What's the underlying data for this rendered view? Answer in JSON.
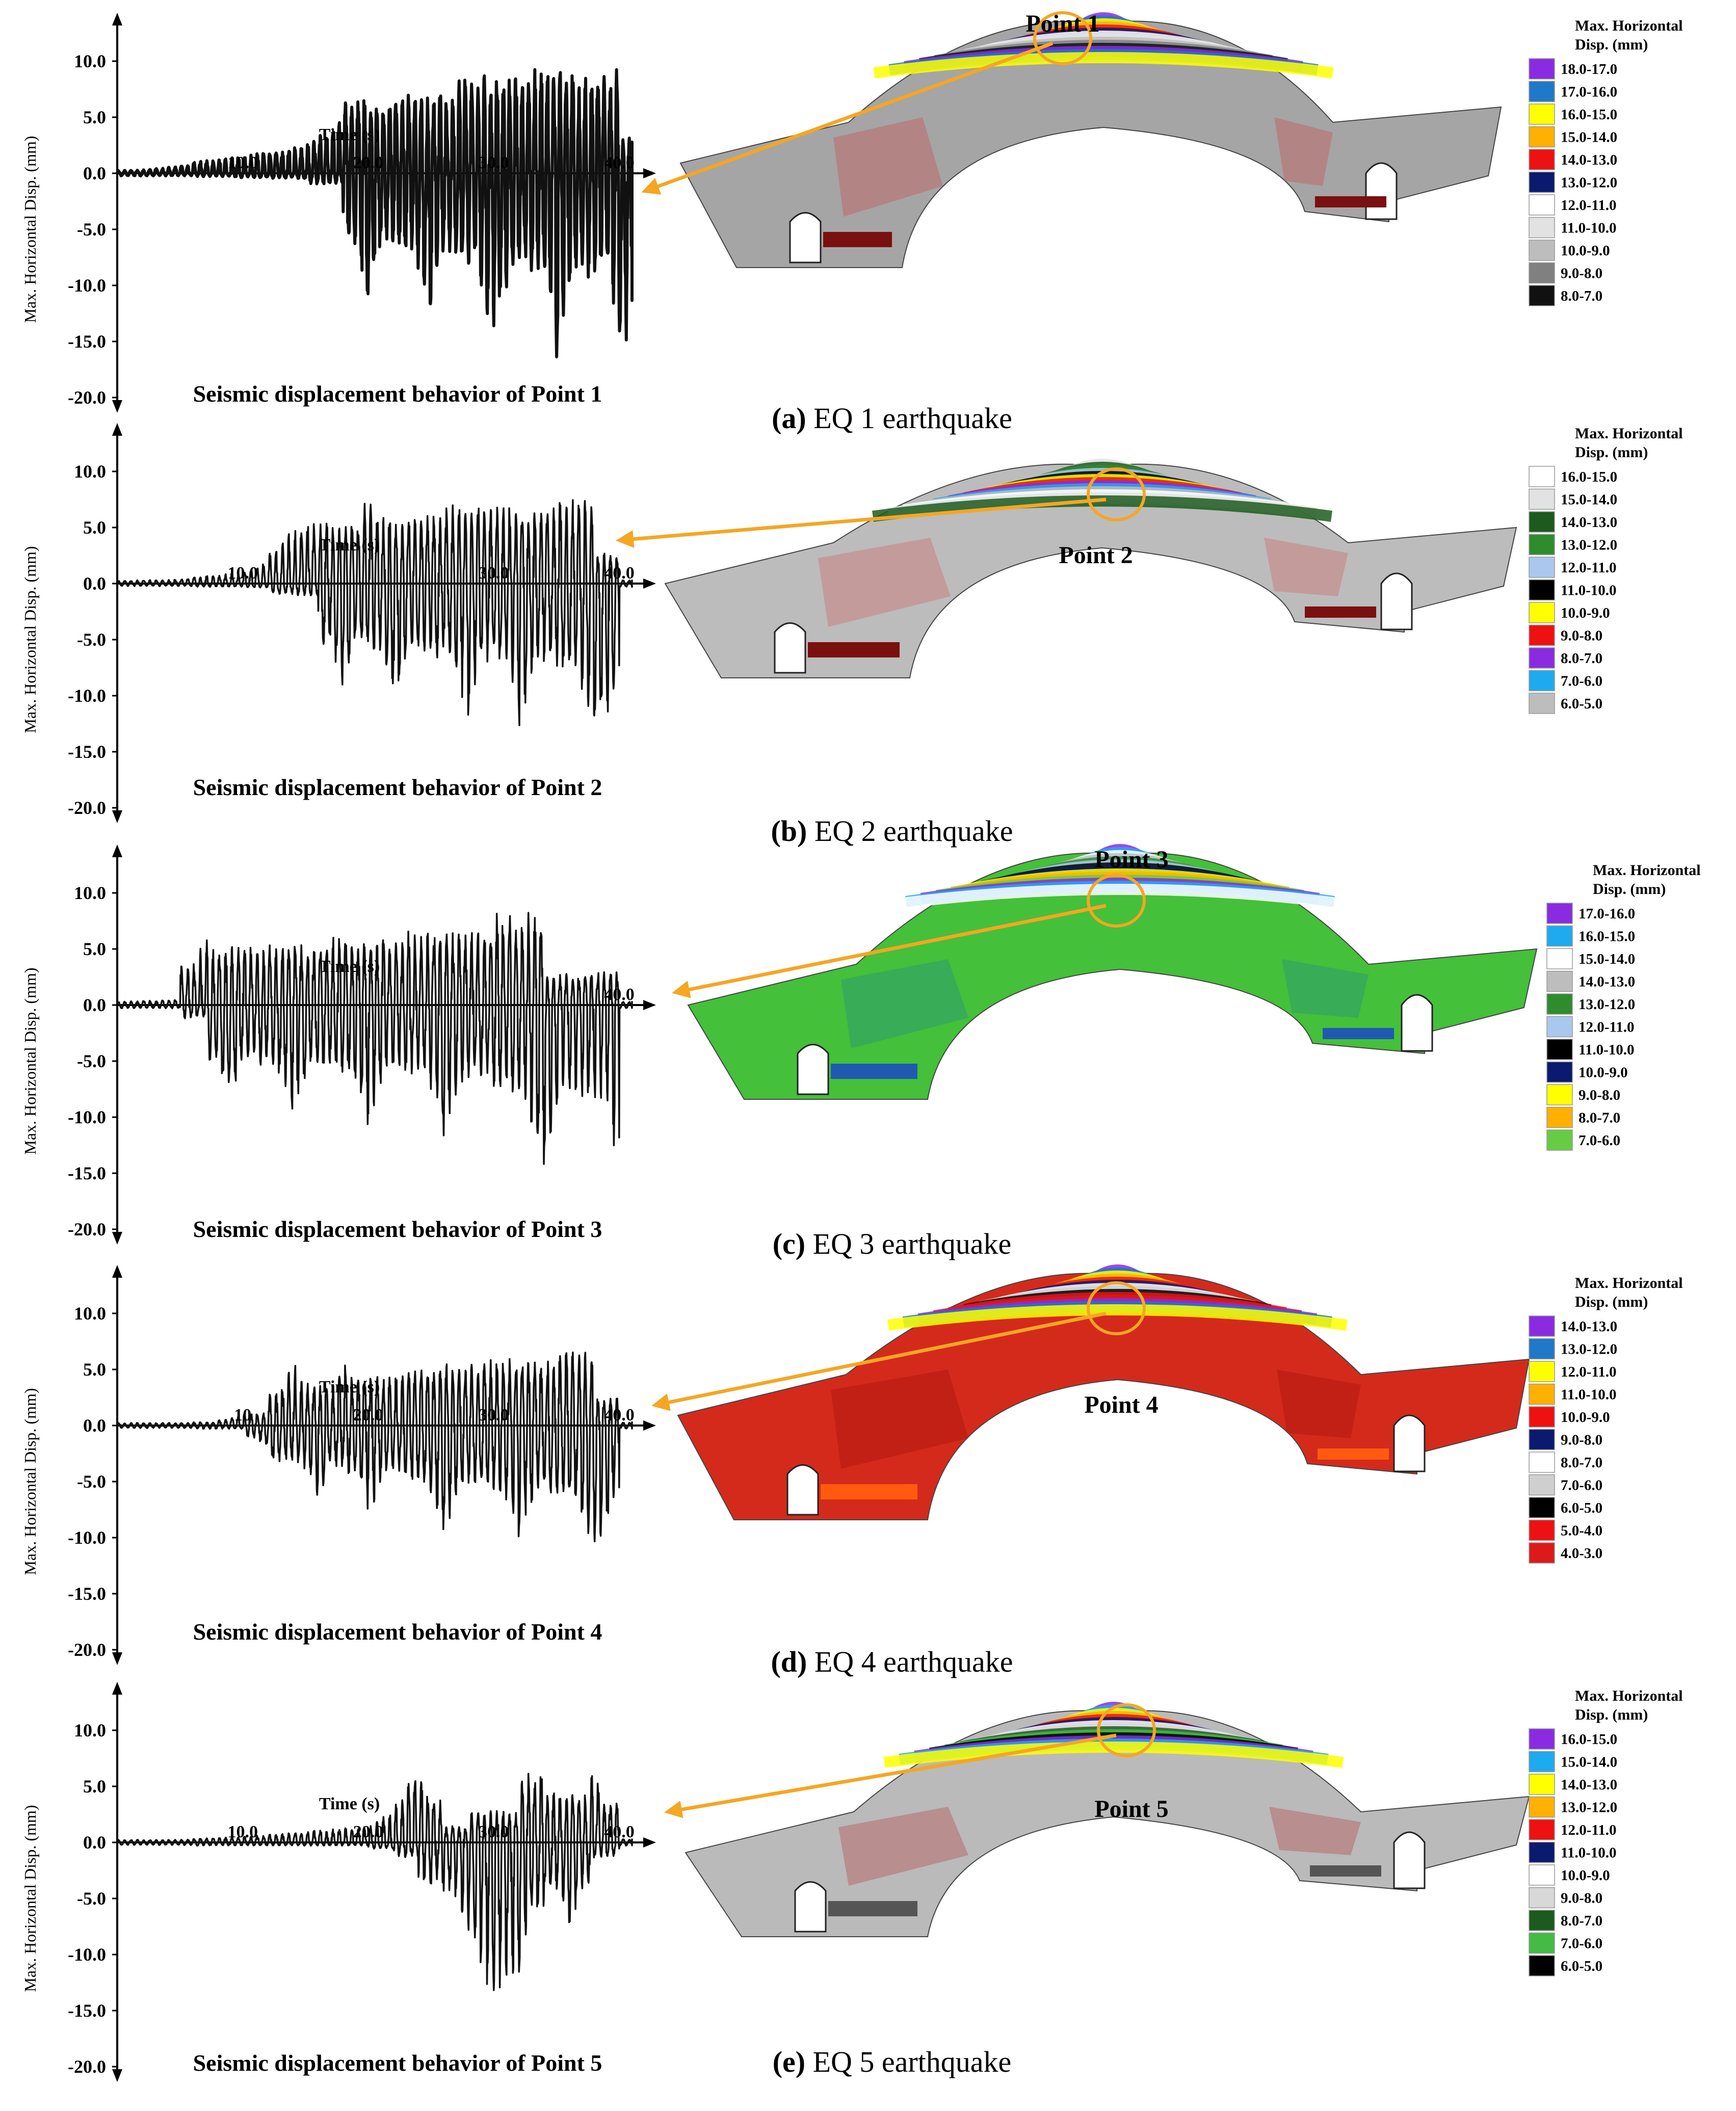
{
  "figure": {
    "panels": [
      {
        "id": "a",
        "caption_letter": "(a)",
        "caption_text": " EQ 1 earthquake",
        "subtitle": "Seismic displacement behavior of Point 1",
        "point_label": "Point 1",
        "legend_title": [
          "Max. Horizontal",
          "Disp. (mm)"
        ],
        "legend": [
          {
            "label": "18.0-17.0",
            "color": "#8a2be2"
          },
          {
            "label": "17.0-16.0",
            "color": "#1f78c8"
          },
          {
            "label": "16.0-15.0",
            "color": "#ffff00"
          },
          {
            "label": "15.0-14.0",
            "color": "#ffb000"
          },
          {
            "label": "14.0-13.0",
            "color": "#ee1111"
          },
          {
            "label": "13.0-12.0",
            "color": "#0a1a6e"
          },
          {
            "label": "12.0-11.0",
            "color": "#ffffff"
          },
          {
            "label": "11.0-10.0",
            "color": "#e2e2e2"
          },
          {
            "label": "10.0-9.0",
            "color": "#bdbdbd"
          },
          {
            "label": "9.0-8.0",
            "color": "#808080"
          },
          {
            "label": "8.0-7.0",
            "color": "#111111"
          }
        ],
        "bridge_base": "#a5a5a5",
        "bridge_accent": "#c06a6a",
        "base_strip": "#7a1010"
      },
      {
        "id": "b",
        "caption_letter": "(b)",
        "caption_text": " EQ 2 earthquake",
        "subtitle": "Seismic displacement behavior of Point 2",
        "point_label": "Point 2",
        "legend_title": [
          "Max. Horizontal",
          "Disp. (mm)"
        ],
        "legend": [
          {
            "label": "16.0-15.0",
            "color": "#ffffff"
          },
          {
            "label": "15.0-14.0",
            "color": "#e2e2e2"
          },
          {
            "label": "14.0-13.0",
            "color": "#1d5a1d"
          },
          {
            "label": "13.0-12.0",
            "color": "#2e8b2e"
          },
          {
            "label": "12.0-11.0",
            "color": "#aac8ee"
          },
          {
            "label": "11.0-10.0",
            "color": "#000000"
          },
          {
            "label": "10.0-9.0",
            "color": "#ffff00"
          },
          {
            "label": "9.0-8.0",
            "color": "#ee1111"
          },
          {
            "label": "8.0-7.0",
            "color": "#8a2be2"
          },
          {
            "label": "7.0-6.0",
            "color": "#1eaaee"
          },
          {
            "label": "6.0-5.0",
            "color": "#bdbdbd"
          }
        ],
        "bridge_base": "#bcbcbc",
        "bridge_accent": "#c88080",
        "base_strip": "#7a1010"
      },
      {
        "id": "c",
        "caption_letter": "(c)",
        "caption_text": " EQ 3 earthquake",
        "subtitle": "Seismic displacement behavior of Point 3",
        "point_label": "Point 3",
        "legend_title": [
          "Max. Horizontal",
          "Disp. (mm)"
        ],
        "legend": [
          {
            "label": "17.0-16.0",
            "color": "#8a2be2"
          },
          {
            "label": "16.0-15.0",
            "color": "#1eaaee"
          },
          {
            "label": "15.0-14.0",
            "color": "#ffffff"
          },
          {
            "label": "14.0-13.0",
            "color": "#bdbdbd"
          },
          {
            "label": "13.0-12.0",
            "color": "#2e8b2e"
          },
          {
            "label": "12.0-11.0",
            "color": "#aac8ee"
          },
          {
            "label": "11.0-10.0",
            "color": "#000000"
          },
          {
            "label": "10.0-9.0",
            "color": "#0a1a6e"
          },
          {
            "label": "9.0-8.0",
            "color": "#ffff00"
          },
          {
            "label": "8.0-7.0",
            "color": "#ffb000"
          },
          {
            "label": "7.0-6.0",
            "color": "#66cc44"
          }
        ],
        "bridge_base": "#44c03a",
        "bridge_accent": "#2f9a70",
        "base_strip": "#1f5ab0"
      },
      {
        "id": "d",
        "caption_letter": "(d)",
        "caption_text": " EQ 4 earthquake",
        "subtitle": "Seismic displacement behavior of Point 4",
        "point_label": "Point 4",
        "legend_title": [
          "Max. Horizontal",
          "Disp. (mm)"
        ],
        "legend": [
          {
            "label": "14.0-13.0",
            "color": "#8a2be2"
          },
          {
            "label": "13.0-12.0",
            "color": "#1f78c8"
          },
          {
            "label": "12.0-11.0",
            "color": "#ffff00"
          },
          {
            "label": "11.0-10.0",
            "color": "#ffb000"
          },
          {
            "label": "10.0-9.0",
            "color": "#ee1111"
          },
          {
            "label": "9.0-8.0",
            "color": "#0a1a6e"
          },
          {
            "label": "8.0-7.0",
            "color": "#ffffff"
          },
          {
            "label": "7.0-6.0",
            "color": "#cfcfcf"
          },
          {
            "label": "6.0-5.0",
            "color": "#000000"
          },
          {
            "label": "5.0-4.0",
            "color": "#ee1111"
          },
          {
            "label": "4.0-3.0",
            "color": "#dd1a1a"
          }
        ],
        "bridge_base": "#d42a1c",
        "bridge_accent": "#b51810",
        "base_strip": "#ff5a10"
      },
      {
        "id": "e",
        "caption_letter": "(e)",
        "caption_text": " EQ 5 earthquake",
        "subtitle": "Seismic displacement behavior of Point 5",
        "point_label": "Point 5",
        "legend_title": [
          "Max. Horizontal",
          "Disp. (mm)"
        ],
        "legend": [
          {
            "label": "16.0-15.0",
            "color": "#8a2be2"
          },
          {
            "label": "15.0-14.0",
            "color": "#1eaaee"
          },
          {
            "label": "14.0-13.0",
            "color": "#ffff00"
          },
          {
            "label": "13.0-12.0",
            "color": "#ffb000"
          },
          {
            "label": "12.0-11.0",
            "color": "#ee1111"
          },
          {
            "label": "11.0-10.0",
            "color": "#0a1a6e"
          },
          {
            "label": "10.0-9.0",
            "color": "#ffffff"
          },
          {
            "label": "9.0-8.0",
            "color": "#d8d8d8"
          },
          {
            "label": "8.0-7.0",
            "color": "#1d5a1d"
          },
          {
            "label": "7.0-6.0",
            "color": "#44bb44"
          },
          {
            "label": "6.0-5.0",
            "color": "#000000"
          }
        ],
        "bridge_base": "#bababa",
        "bridge_accent": "#b66a6a",
        "base_strip": "#555555"
      }
    ]
  },
  "chart_data": [
    {
      "type": "line",
      "title": "Seismic displacement behavior of Point 1",
      "xlabel": "Time (s)",
      "ylabel": "Max. Horizontal Disp. (mm)",
      "ylim": [
        -20.0,
        10.0
      ],
      "xlim": [
        0,
        40
      ],
      "yticks": [
        "10.0",
        "5.0",
        "0.0",
        "-5.0",
        "-10.0",
        "-15.0",
        "-20.0"
      ],
      "xticks": [
        "10.0",
        "20.0",
        "30.0",
        "40.0"
      ],
      "series": [
        {
          "x": [
            0,
            3,
            6,
            9,
            12,
            15,
            18,
            20,
            22,
            25,
            27,
            30,
            33,
            35,
            38,
            40,
            42
          ],
          "y": [
            0,
            0.5,
            1,
            1.5,
            2,
            2.5,
            5,
            -12,
            4,
            -13,
            6,
            -16,
            7,
            -17,
            5,
            -17,
            -10
          ]
        }
      ]
    },
    {
      "type": "line",
      "title": "Seismic displacement behavior of Point 2",
      "xlabel": "Time (s)",
      "ylabel": "Max. Horizontal Disp. (mm)",
      "ylim": [
        -20.0,
        10.0
      ],
      "xlim": [
        0,
        40
      ],
      "yticks": [
        "10.0",
        "5.0",
        "0.0",
        "-5.0",
        "-10.0",
        "-15.0",
        "-20.0"
      ],
      "xticks": [
        "10.0",
        "30.0",
        "40.0"
      ],
      "series": [
        {
          "x": [
            0,
            5,
            10,
            12,
            14,
            16,
            18,
            20,
            22,
            25,
            28,
            30,
            32,
            35,
            38,
            40
          ],
          "y": [
            0,
            0.5,
            1,
            2,
            5,
            6,
            -10,
            8.5,
            -11,
            7,
            -13,
            7,
            -13,
            6,
            -14,
            -10
          ]
        }
      ]
    },
    {
      "type": "line",
      "title": "Seismic displacement behavior of Point 3",
      "xlabel": "Time (s)",
      "ylabel": "Max. Horizontal Disp. (mm)",
      "ylim": [
        -20.0,
        10.0
      ],
      "xlim": [
        0,
        40
      ],
      "yticks": [
        "10.0",
        "5.0",
        "0.0",
        "-5.0",
        "-10.0",
        "-15.0",
        "-20.0"
      ],
      "xticks": [
        "40.0"
      ],
      "series": [
        {
          "x": [
            0,
            5,
            7,
            9,
            11,
            14,
            17,
            20,
            23,
            26,
            30,
            34,
            38,
            40
          ],
          "y": [
            0,
            0.5,
            6.5,
            -9.5,
            6,
            -10,
            4,
            -11,
            3,
            -12,
            2,
            -15,
            -1,
            -16
          ]
        }
      ]
    },
    {
      "type": "line",
      "title": "Seismic displacement behavior of Point 4",
      "xlabel": "Time (s)",
      "ylabel": "Max. Horizontal Disp. (mm)",
      "ylim": [
        -20.0,
        10.0
      ],
      "xlim": [
        0,
        40
      ],
      "yticks": [
        "10.0",
        "5.0",
        "0.0",
        "-5.0",
        "-10.0",
        "-15.0",
        "-20.0"
      ],
      "xticks": [
        "10",
        "20.0",
        "30.0",
        "40.0"
      ],
      "series": [
        {
          "x": [
            0,
            8,
            10,
            12,
            14,
            16,
            18,
            20,
            23,
            26,
            29,
            32,
            35,
            38,
            40
          ],
          "y": [
            0,
            0,
            1,
            -2,
            6,
            -7,
            6,
            -8,
            5,
            -10,
            3,
            -11,
            2,
            -13,
            -6
          ]
        }
      ]
    },
    {
      "type": "line",
      "title": "Seismic displacement behavior of Point 5",
      "xlabel": "Time (s)",
      "ylabel": "Max. Horizontal Disp. (mm)",
      "ylim": [
        -20.0,
        10.0
      ],
      "xlim": [
        0,
        40
      ],
      "yticks": [
        "10.0",
        "5.0",
        "0.0",
        "-5.0",
        "-10.0",
        "-15.0",
        "-20.0"
      ],
      "xticks": [
        "10.0",
        "20.0",
        "30.0",
        "40.0"
      ],
      "series": [
        {
          "x": [
            0,
            5,
            10,
            15,
            20,
            22,
            24,
            26,
            28,
            30,
            32,
            34,
            36,
            38,
            40
          ],
          "y": [
            0,
            0,
            0.5,
            1,
            1.5,
            3,
            7,
            -3,
            -8,
            -15,
            -12,
            5,
            -8,
            7,
            0
          ]
        }
      ]
    }
  ]
}
